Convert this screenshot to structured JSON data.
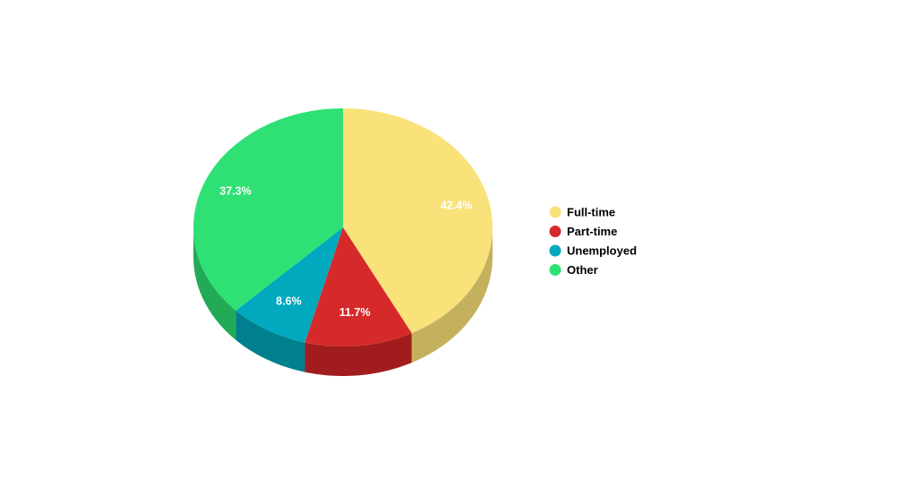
{
  "chart_data": {
    "type": "pie",
    "title": "",
    "style": "3d",
    "legend_position": "right",
    "slices": [
      {
        "label": "Full-time",
        "value": 42.4,
        "display": "42.4%",
        "color": "#F9E27A",
        "side_color": "#C4B15E"
      },
      {
        "label": "Part-time",
        "value": 11.7,
        "display": "11.7%",
        "color": "#D62A2A",
        "side_color": "#A11D1D"
      },
      {
        "label": "Unemployed",
        "value": 8.6,
        "display": "8.6%",
        "color": "#00A9BE",
        "side_color": "#007F8F"
      },
      {
        "label": "Other",
        "value": 37.3,
        "display": "37.3%",
        "color": "#2FE075",
        "side_color": "#22AA57"
      }
    ]
  }
}
